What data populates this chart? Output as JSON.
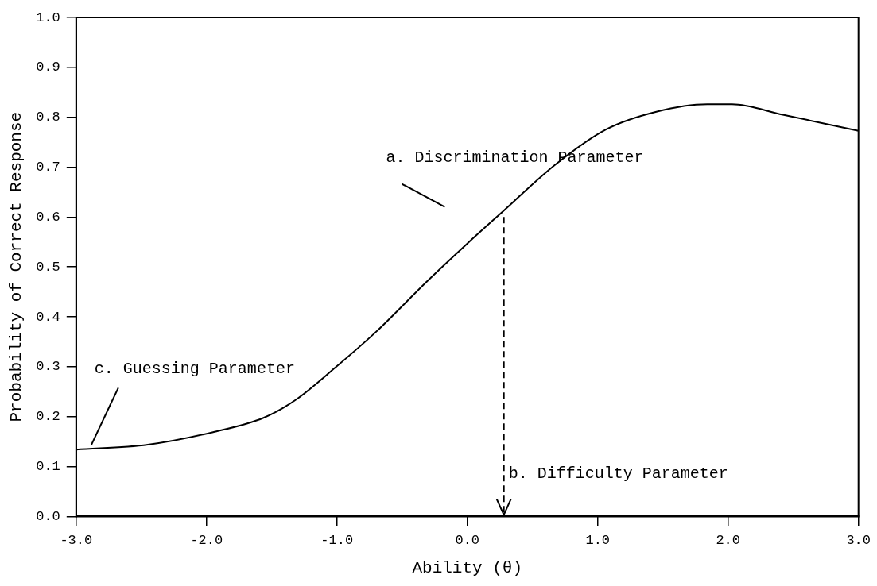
{
  "chart_data": {
    "type": "line",
    "xlabel": "Ability (θ)",
    "ylabel": "Probability of Correct Response",
    "series": [
      {
        "color": "#000000",
        "x": [
          -3,
          -2.45,
          -1.95,
          -1.56,
          -1.32,
          -1.01,
          -0.7,
          -0.31,
          0,
          0.28,
          0.67,
          1.06,
          1.45,
          1.84,
          2.03,
          2.42,
          3
        ],
        "values": [
          0.134,
          0.144,
          0.169,
          0.198,
          0.233,
          0.299,
          0.37,
          0.471,
          0.547,
          0.613,
          0.704,
          0.775,
          0.811,
          0.826,
          0.826,
          0.805,
          0.773
        ]
      }
    ],
    "xlim": [
      -3,
      3
    ],
    "xticks": [
      {
        "value": -3,
        "label": "-3.0"
      },
      {
        "value": -2,
        "label": "-2.0"
      },
      {
        "value": -1,
        "label": "-1.0"
      },
      {
        "value": 0,
        "label": "0.0"
      },
      {
        "value": 1,
        "label": "1.0"
      },
      {
        "value": 2,
        "label": "2.0"
      },
      {
        "value": 3,
        "label": "3.0"
      }
    ],
    "ylim": [
      0,
      1
    ],
    "yticks": [
      {
        "value": 0,
        "label": "0.0"
      },
      0.1,
      0.2,
      0.3,
      0.4,
      0.5,
      0.6,
      0.7,
      0.8,
      0.9,
      {
        "value": 1,
        "label": "1.0"
      }
    ],
    "annotations": [
      "a. Discrimination Parameter",
      {
        "text": "c. Guessing Parameter",
        "x": -2.89,
        "y": 0.137
      }
    ],
    "ref_lines": [
      {
        "axis": "x",
        "value": 0.28,
        "label": "b. Difficulty Parameter",
        "line_style": "dashed"
      }
    ],
    "grid": false,
    "legend": false,
    "marker": "none",
    "line_style": "solid"
  }
}
